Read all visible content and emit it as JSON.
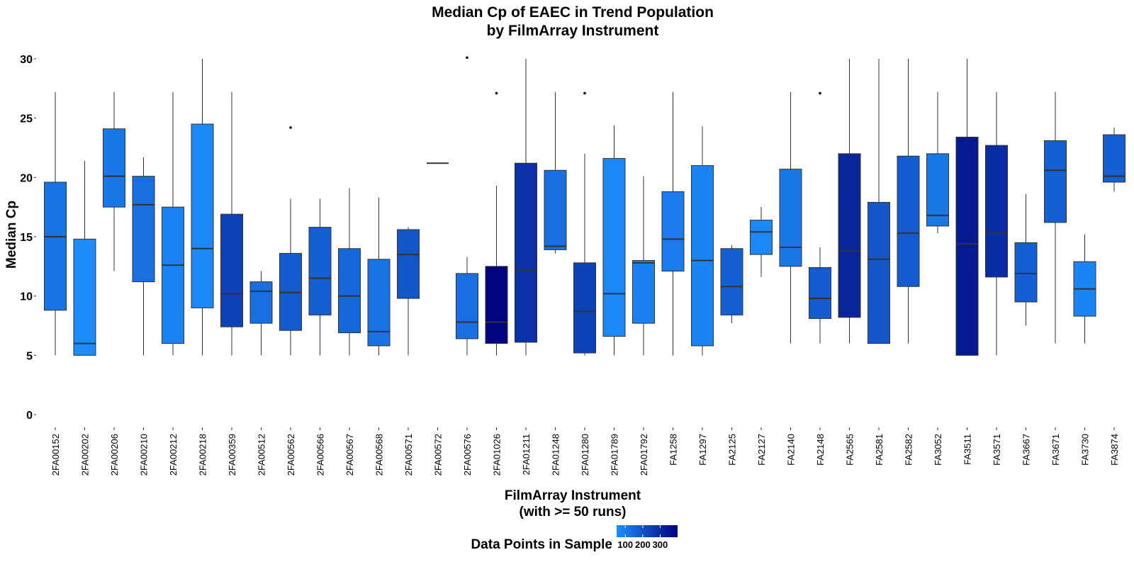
{
  "chart_data": {
    "type": "boxplot",
    "title": "Median Cp of EAEC in Trend Population",
    "subtitle": "by FilmArray Instrument",
    "xlabel": "FilmArray Instrument",
    "xlabel_line2": "(with >= 50 runs)",
    "ylabel": "Median Cp",
    "ylim": [
      0,
      30
    ],
    "yticks": [
      "0",
      "5",
      "10",
      "15",
      "20",
      "25",
      "30"
    ],
    "legend": {
      "title": "Data Points in Sample",
      "position": "bottom",
      "tick_labels": [
        "100",
        "200",
        "300"
      ],
      "low_color": "#1E90FF",
      "high_color": "#00007A"
    },
    "grid": false,
    "boxes": [
      {
        "label": "2FA00152",
        "lower_whisker": 5.0,
        "q1": 8.8,
        "median": 15.0,
        "q3": 19.6,
        "upper_whisker": 27.2,
        "outliers": [],
        "n": 120
      },
      {
        "label": "2FA00202",
        "lower_whisker": 5.0,
        "q1": 5.0,
        "median": 6.0,
        "q3": 14.8,
        "upper_whisker": 21.4,
        "outliers": [],
        "n": 60
      },
      {
        "label": "2FA00206",
        "lower_whisker": 12.1,
        "q1": 17.5,
        "median": 20.1,
        "q3": 24.1,
        "upper_whisker": 27.2,
        "outliers": [],
        "n": 110
      },
      {
        "label": "2FA00210",
        "lower_whisker": 5.0,
        "q1": 11.2,
        "median": 17.7,
        "q3": 20.1,
        "upper_whisker": 21.7,
        "outliers": [],
        "n": 130
      },
      {
        "label": "2FA00212",
        "lower_whisker": 5.0,
        "q1": 6.0,
        "median": 12.6,
        "q3": 17.5,
        "upper_whisker": 27.2,
        "outliers": [],
        "n": 80
      },
      {
        "label": "2FA00218",
        "lower_whisker": 5.0,
        "q1": 9.0,
        "median": 14.0,
        "q3": 24.5,
        "upper_whisker": 30.0,
        "outliers": [],
        "n": 70
      },
      {
        "label": "2FA00359",
        "lower_whisker": 5.0,
        "q1": 7.4,
        "median": 10.2,
        "q3": 16.9,
        "upper_whisker": 27.2,
        "outliers": [],
        "n": 240
      },
      {
        "label": "2FA00512",
        "lower_whisker": 5.0,
        "q1": 7.7,
        "median": 10.4,
        "q3": 11.2,
        "upper_whisker": 12.1,
        "outliers": [],
        "n": 130
      },
      {
        "label": "2FA00562",
        "lower_whisker": 5.0,
        "q1": 7.1,
        "median": 10.3,
        "q3": 13.6,
        "upper_whisker": 18.2,
        "outliers": [
          24.2
        ],
        "n": 180
      },
      {
        "label": "2FA00566",
        "lower_whisker": 5.0,
        "q1": 8.4,
        "median": 11.5,
        "q3": 15.8,
        "upper_whisker": 18.2,
        "outliers": [],
        "n": 170
      },
      {
        "label": "2FA00567",
        "lower_whisker": 5.0,
        "q1": 6.9,
        "median": 10.0,
        "q3": 14.0,
        "upper_whisker": 19.1,
        "outliers": [],
        "n": 150
      },
      {
        "label": "2FA00568",
        "lower_whisker": 5.0,
        "q1": 5.8,
        "median": 7.0,
        "q3": 13.1,
        "upper_whisker": 18.3,
        "outliers": [],
        "n": 120
      },
      {
        "label": "2FA00571",
        "lower_whisker": 5.0,
        "q1": 9.8,
        "median": 13.5,
        "q3": 15.6,
        "upper_whisker": 15.8,
        "outliers": [],
        "n": 190
      },
      {
        "label": "2FA00572",
        "lower_whisker": 21.2,
        "q1": 21.2,
        "median": 21.2,
        "q3": 21.2,
        "upper_whisker": 21.2,
        "outliers": [],
        "n": 120
      },
      {
        "label": "2FA00576",
        "lower_whisker": 5.0,
        "q1": 6.4,
        "median": 7.8,
        "q3": 11.9,
        "upper_whisker": 13.3,
        "outliers": [
          30.1
        ],
        "n": 130
      },
      {
        "label": "2FA01026",
        "lower_whisker": 5.0,
        "q1": 6.0,
        "median": 7.8,
        "q3": 12.5,
        "upper_whisker": 19.3,
        "outliers": [
          27.1
        ],
        "n": 390
      },
      {
        "label": "2FA01211",
        "lower_whisker": 5.0,
        "q1": 6.1,
        "median": 12.1,
        "q3": 21.2,
        "upper_whisker": 30.0,
        "outliers": [],
        "n": 280
      },
      {
        "label": "2FA01248",
        "lower_whisker": 13.6,
        "q1": 13.9,
        "median": 14.2,
        "q3": 20.6,
        "upper_whisker": 27.2,
        "outliers": [],
        "n": 130
      },
      {
        "label": "2FA01280",
        "lower_whisker": 5.0,
        "q1": 5.2,
        "median": 8.7,
        "q3": 12.8,
        "upper_whisker": 22.0,
        "outliers": [
          27.1
        ],
        "n": 240
      },
      {
        "label": "2FA01789",
        "lower_whisker": 5.0,
        "q1": 6.6,
        "median": 10.2,
        "q3": 21.6,
        "upper_whisker": 24.4,
        "outliers": [],
        "n": 70
      },
      {
        "label": "2FA01792",
        "lower_whisker": 5.0,
        "q1": 7.7,
        "median": 12.8,
        "q3": 13.0,
        "upper_whisker": 20.1,
        "outliers": [],
        "n": 90
      },
      {
        "label": "FA1258",
        "lower_whisker": 5.0,
        "q1": 12.1,
        "median": 14.8,
        "q3": 18.8,
        "upper_whisker": 27.2,
        "outliers": [],
        "n": 100
      },
      {
        "label": "FA1297",
        "lower_whisker": 5.0,
        "q1": 5.8,
        "median": 13.0,
        "q3": 21.0,
        "upper_whisker": 24.3,
        "outliers": [],
        "n": 80
      },
      {
        "label": "FA2125",
        "lower_whisker": 7.7,
        "q1": 8.4,
        "median": 10.8,
        "q3": 14.0,
        "upper_whisker": 14.3,
        "outliers": [],
        "n": 170
      },
      {
        "label": "FA2127",
        "lower_whisker": 11.6,
        "q1": 13.5,
        "median": 15.4,
        "q3": 16.4,
        "upper_whisker": 17.5,
        "outliers": [],
        "n": 70
      },
      {
        "label": "FA2140",
        "lower_whisker": 6.0,
        "q1": 12.5,
        "median": 14.1,
        "q3": 20.7,
        "upper_whisker": 27.2,
        "outliers": [],
        "n": 110
      },
      {
        "label": "FA2148",
        "lower_whisker": 6.0,
        "q1": 8.1,
        "median": 9.8,
        "q3": 12.4,
        "upper_whisker": 14.1,
        "outliers": [
          27.1
        ],
        "n": 180
      },
      {
        "label": "FA2565",
        "lower_whisker": 6.0,
        "q1": 8.2,
        "median": 13.8,
        "q3": 22.0,
        "upper_whisker": 30.0,
        "outliers": [],
        "n": 310
      },
      {
        "label": "FA2581",
        "lower_whisker": 6.0,
        "q1": 6.0,
        "median": 13.1,
        "q3": 17.9,
        "upper_whisker": 30.0,
        "outliers": [],
        "n": 190
      },
      {
        "label": "FA2582",
        "lower_whisker": 6.0,
        "q1": 10.8,
        "median": 15.3,
        "q3": 21.8,
        "upper_whisker": 30.0,
        "outliers": [],
        "n": 180
      },
      {
        "label": "FA3052",
        "lower_whisker": 15.3,
        "q1": 15.9,
        "median": 16.8,
        "q3": 22.0,
        "upper_whisker": 27.2,
        "outliers": [],
        "n": 110
      },
      {
        "label": "FA3511",
        "lower_whisker": 5.0,
        "q1": 5.0,
        "median": 14.4,
        "q3": 23.4,
        "upper_whisker": 30.0,
        "outliers": [],
        "n": 340
      },
      {
        "label": "FA3571",
        "lower_whisker": 5.0,
        "q1": 11.6,
        "median": 15.3,
        "q3": 22.7,
        "upper_whisker": 27.2,
        "outliers": [],
        "n": 290
      },
      {
        "label": "FA3667",
        "lower_whisker": 7.5,
        "q1": 9.5,
        "median": 11.9,
        "q3": 14.5,
        "upper_whisker": 18.6,
        "outliers": [],
        "n": 170
      },
      {
        "label": "FA3671",
        "lower_whisker": 6.0,
        "q1": 16.2,
        "median": 20.6,
        "q3": 23.1,
        "upper_whisker": 27.2,
        "outliers": [],
        "n": 170
      },
      {
        "label": "FA3730",
        "lower_whisker": 6.0,
        "q1": 8.3,
        "median": 10.6,
        "q3": 12.9,
        "upper_whisker": 15.2,
        "outliers": [],
        "n": 80
      },
      {
        "label": "FA3874",
        "lower_whisker": 18.8,
        "q1": 19.6,
        "median": 20.1,
        "q3": 23.6,
        "upper_whisker": 24.2,
        "outliers": [],
        "n": 170
      }
    ]
  }
}
